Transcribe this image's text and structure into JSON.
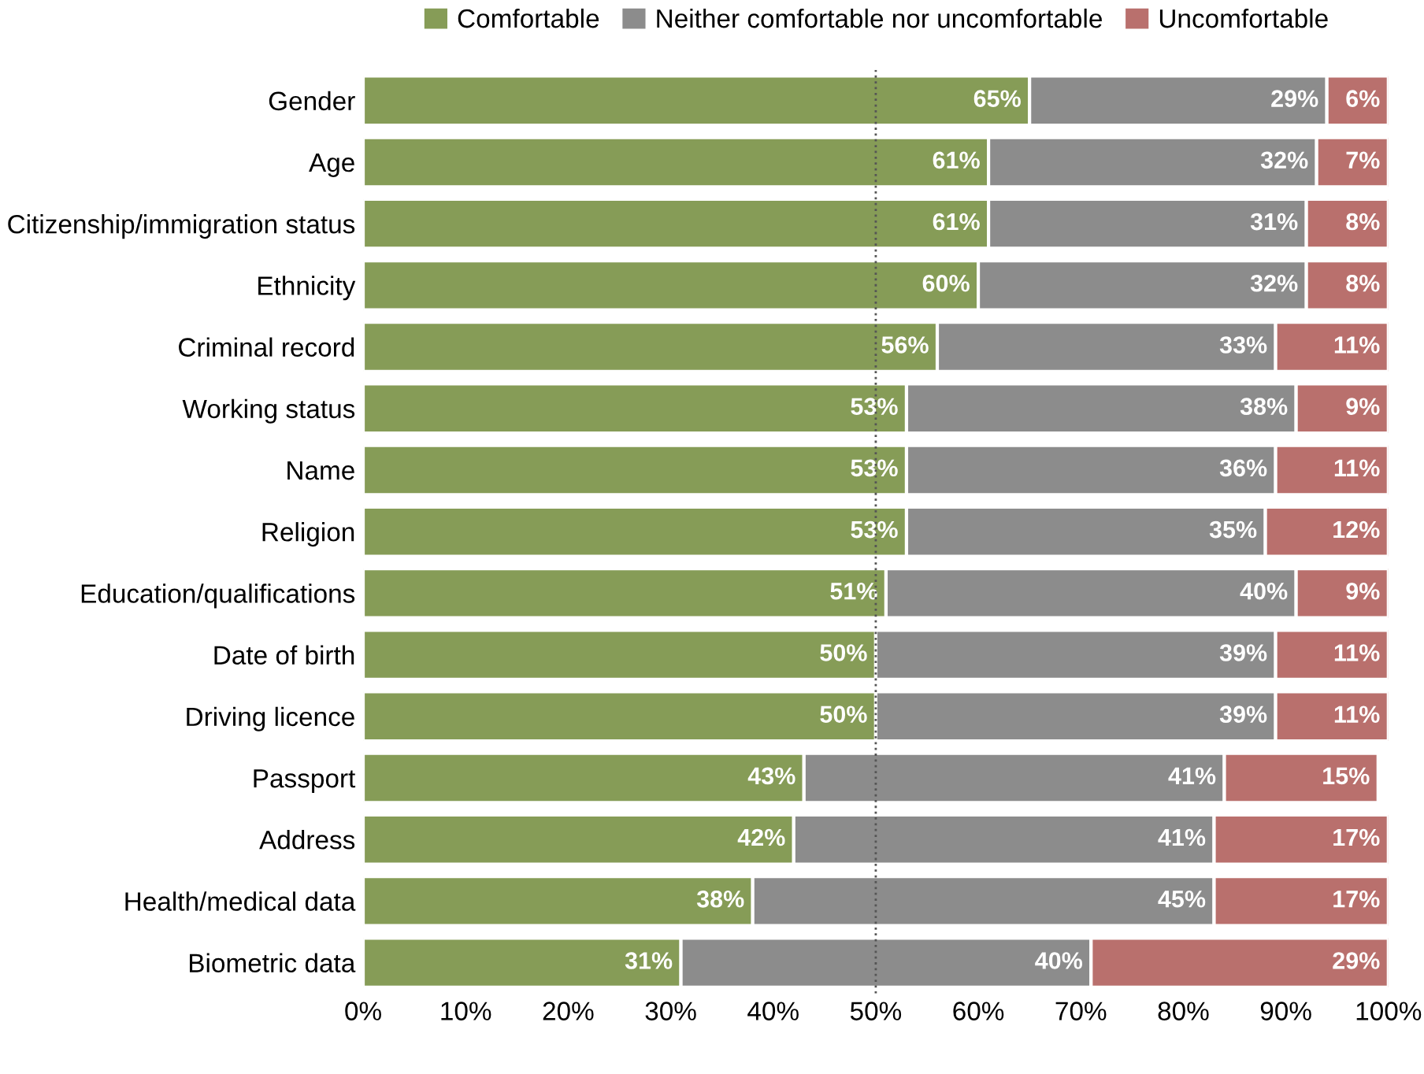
{
  "chart_data": {
    "type": "bar",
    "orientation": "horizontal",
    "stacked": true,
    "categories": [
      "Gender",
      "Age",
      "Citizenship/immigration status",
      "Ethnicity",
      "Criminal record",
      "Working status",
      "Name",
      "Religion",
      "Education/qualifications",
      "Date of birth",
      "Driving licence",
      "Passport",
      "Address",
      "Health/medical data",
      "Biometric data"
    ],
    "series": [
      {
        "name": "Comfortable",
        "color": "#869c57",
        "values": [
          65,
          61,
          61,
          60,
          56,
          53,
          53,
          53,
          51,
          50,
          50,
          43,
          42,
          38,
          31
        ],
        "value_labels": [
          "65%",
          "61%",
          "61%",
          "60%",
          "56%",
          "53%",
          "53%",
          "53%",
          "51%",
          "50%",
          "50%",
          "43%",
          "42%",
          "38%",
          "31%"
        ]
      },
      {
        "name": "Neither comfortable nor uncomfortable",
        "color": "#8c8c8c",
        "values": [
          29,
          32,
          31,
          32,
          33,
          38,
          36,
          35,
          40,
          39,
          39,
          41,
          41,
          45,
          40
        ],
        "value_labels": [
          "29%",
          "32%",
          "31%",
          "32%",
          "33%",
          "38%",
          "36%",
          "35%",
          "40%",
          "39%",
          "39%",
          "41%",
          "41%",
          "45%",
          "40%"
        ]
      },
      {
        "name": "Uncomfortable",
        "color": "#b9706d",
        "values": [
          6,
          7,
          8,
          8,
          11,
          9,
          11,
          12,
          9,
          11,
          11,
          15,
          17,
          17,
          29
        ],
        "value_labels": [
          "6%",
          "7%",
          "8%",
          "8%",
          "11%",
          "9%",
          "11%",
          "12%",
          "9%",
          "11%",
          "11%",
          "15%",
          "17%",
          "17%",
          "29%"
        ]
      }
    ],
    "xlim": [
      0,
      100
    ],
    "xticks": [
      {
        "value": 0,
        "label": "0%"
      },
      {
        "value": 10,
        "label": "10%"
      },
      {
        "value": 20,
        "label": "20%"
      },
      {
        "value": 30,
        "label": "30%"
      },
      {
        "value": 40,
        "label": "40%"
      },
      {
        "value": 50,
        "label": "50%"
      },
      {
        "value": 60,
        "label": "60%"
      },
      {
        "value": 70,
        "label": "70%"
      },
      {
        "value": 80,
        "label": "80%"
      },
      {
        "value": 90,
        "label": "90%"
      },
      {
        "value": 100,
        "label": "100%"
      }
    ],
    "ref_lines": [
      {
        "axis": "x",
        "value": 50,
        "color": "#555555",
        "line_style": "dotted"
      }
    ],
    "legend": "top",
    "grid": false
  }
}
